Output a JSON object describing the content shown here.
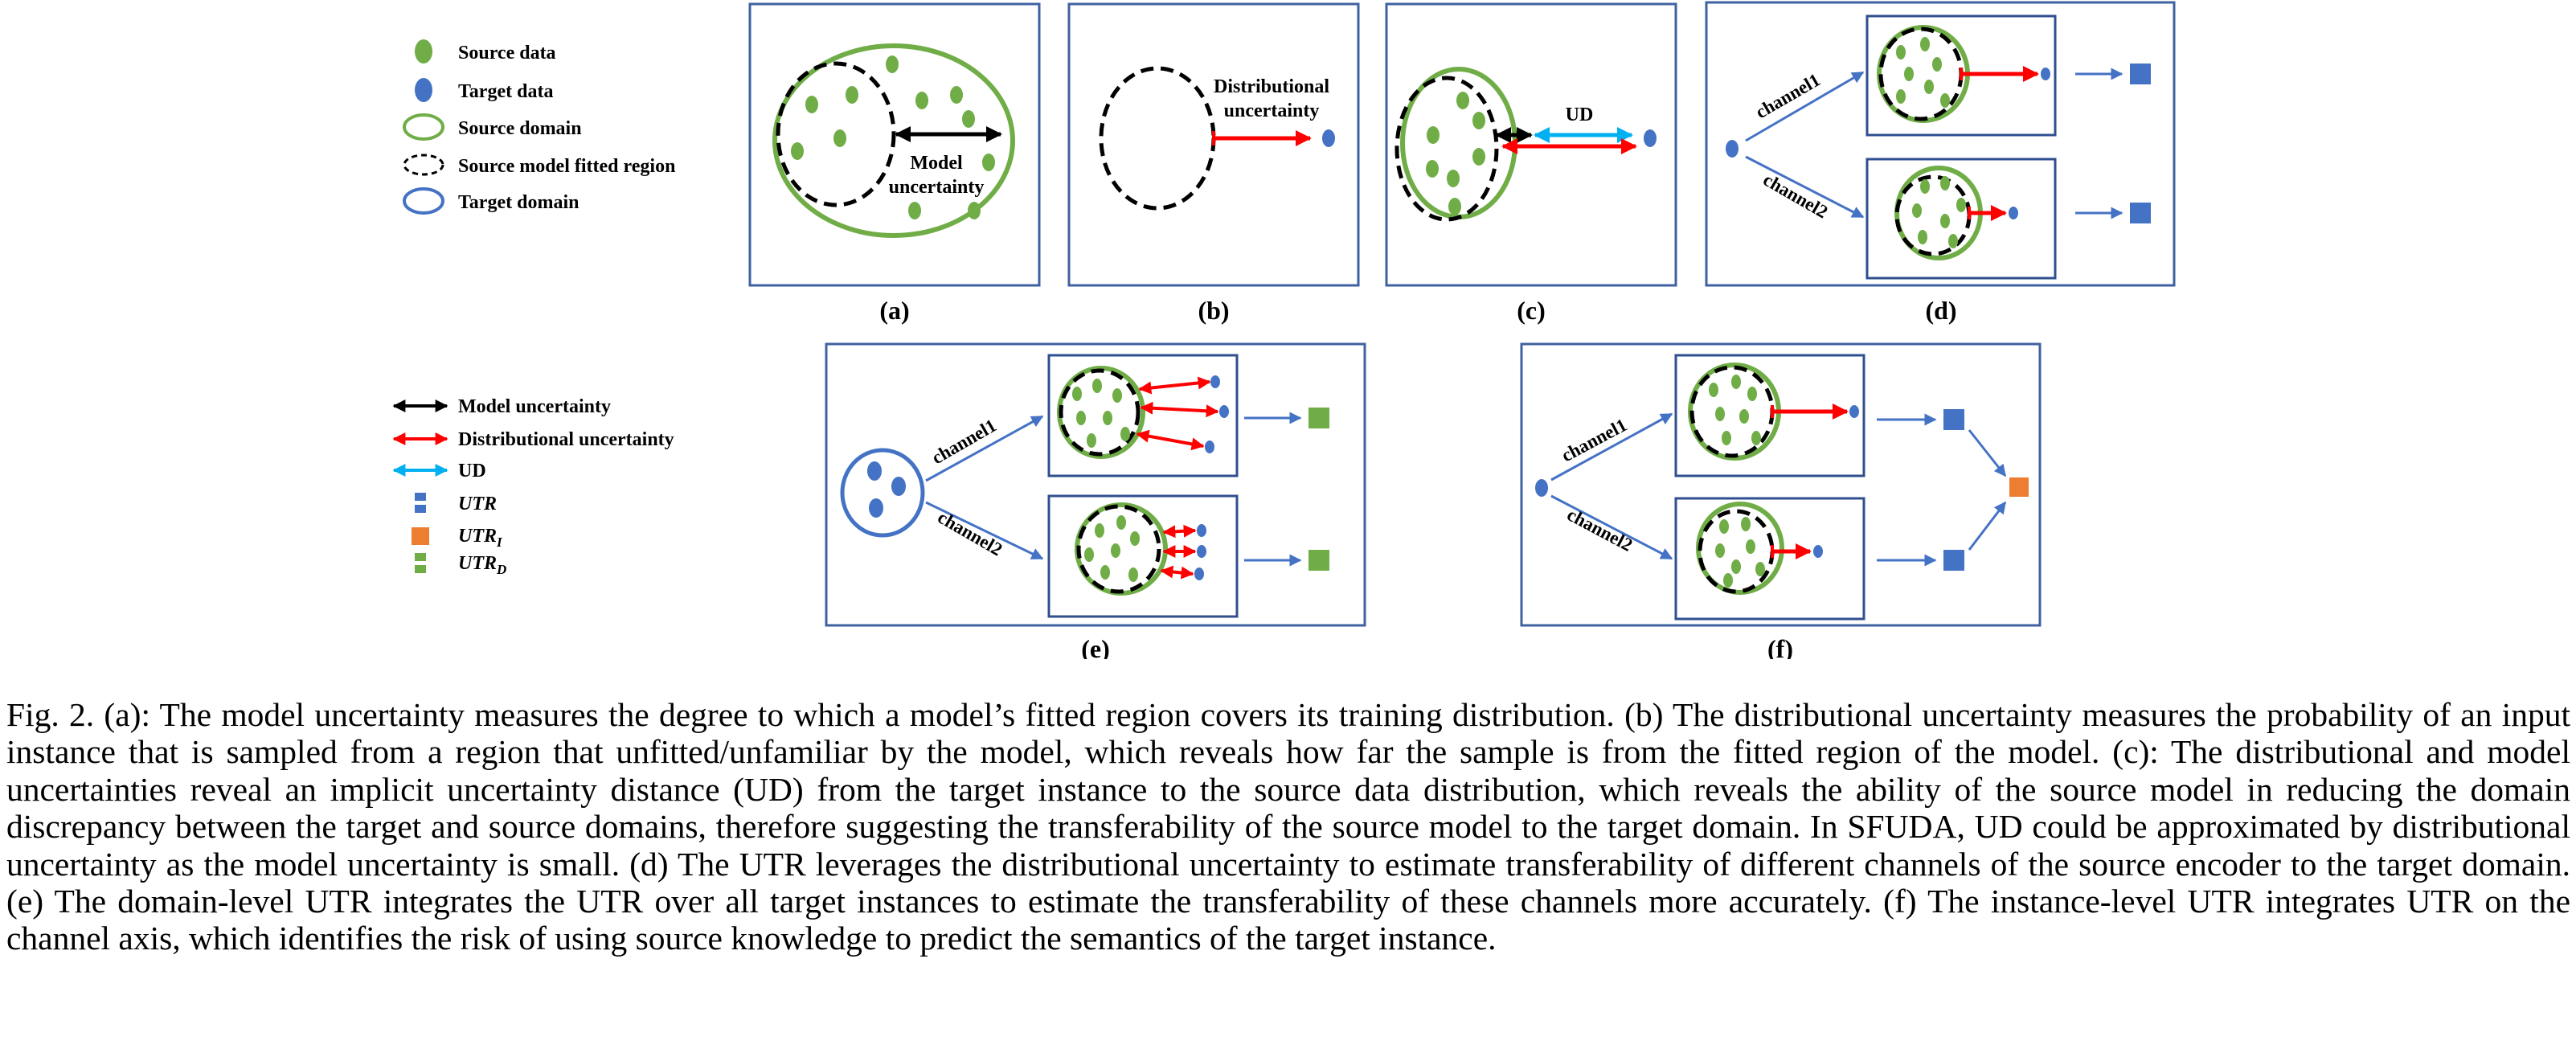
{
  "legend_top": {
    "source_data": "Source data",
    "target_data": "Target data",
    "source_domain": "Source domain",
    "fitted_region": "Source model fitted region",
    "target_domain": "Target domain"
  },
  "legend_bottom": {
    "model_uncertainty": "Model uncertainty",
    "distributional_uncertainty": "Distributional uncertainty",
    "ud": "UD",
    "utr": "UTR",
    "utr_i_base": "UTR",
    "utr_i_sub": "I",
    "utr_d_base": "UTR",
    "utr_d_sub": "D"
  },
  "panels": {
    "a": {
      "label": "(a)",
      "text_line1": "Model",
      "text_line2": "uncertainty"
    },
    "b": {
      "label": "(b)",
      "text_line1": "Distributional",
      "text_line2": "uncertainty"
    },
    "c": {
      "label": "(c)",
      "text": "UD"
    },
    "d": {
      "label": "(d)",
      "channel1": "channel1",
      "channel2": "channel2"
    },
    "e": {
      "label": "(e)",
      "channel1": "channel1",
      "channel2": "channel2"
    },
    "f": {
      "label": "(f)",
      "channel1": "channel1",
      "channel2": "channel2"
    }
  },
  "colors": {
    "source_green": "#70ad47",
    "target_blue": "#4472c4",
    "arrow_red": "#ff0000",
    "arrow_cyan": "#00b0f0",
    "utr_orange": "#ed7d31",
    "frame_blue": "#3f61a0"
  },
  "caption": "Fig. 2.  (a): The model uncertainty measures the degree to which a model’s fitted region covers its training distribution. (b) The distributional uncertainty measures the probability of an input instance that is sampled from a region that unfitted/unfamiliar by the model, which reveals how far the sample is from the fitted region of the model. (c): The distributional and model uncertainties reveal an implicit uncertainty distance (UD) from the target instance to the source data distribution, which reveals the ability of the source model in reducing the domain discrepancy between the target and source domains, therefore suggesting the transferability of the source model to the target domain. In SFUDA, UD could be approximated by distributional uncertainty as the model uncertainty is small. (d) The UTR leverages the distributional uncertainty to estimate transferability of different channels of the source encoder to the target domain. (e) The domain-level UTR integrates the UTR over all target instances to estimate the transferability of these channels more accurately. (f) The instance-level UTR integrates UTR on the channel axis, which identifies the risk of using source knowledge to predict the semantics of the target instance."
}
